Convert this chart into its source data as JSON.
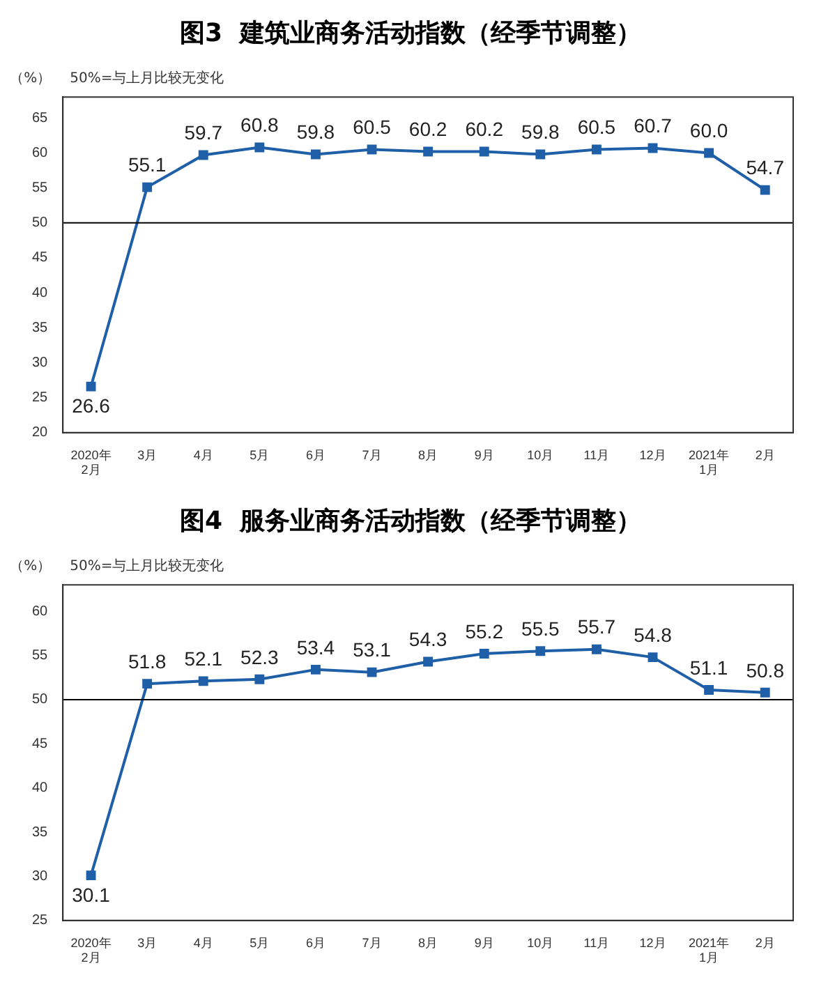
{
  "chart_data": [
    {
      "type": "line",
      "title": "图3  建筑业商务活动指数（经季节调整）",
      "ylabel": "（%）",
      "annotations": [
        "50%=与上月比较无变化"
      ],
      "categories": [
        "2020年\n2月",
        "3月",
        "4月",
        "5月",
        "6月",
        "7月",
        "8月",
        "9月",
        "10月",
        "11月",
        "12月",
        "2021年\n1月",
        "2月"
      ],
      "series": [
        {
          "color": "#1f5fa8",
          "values": [
            26.6,
            55.1,
            59.7,
            60.8,
            59.8,
            60.5,
            60.2,
            60.2,
            59.8,
            60.5,
            60.7,
            60.0,
            54.7
          ],
          "value_labels": [
            "26.6",
            "55.1",
            "59.7",
            "60.8",
            "59.8",
            "60.5",
            "60.2",
            "60.2",
            "59.8",
            "60.5",
            "60.7",
            "60.0",
            "54.7"
          ]
        }
      ],
      "ylim": [
        20,
        68
      ],
      "yticks": [
        20,
        25,
        30,
        35,
        40,
        45,
        50,
        55,
        60,
        65
      ],
      "grid": false,
      "legend": false,
      "marker": "square",
      "line_style": "solid",
      "ref_lines": [
        {
          "axis": "y",
          "value": 50,
          "color": "#000000"
        }
      ]
    },
    {
      "type": "line",
      "title": "图4  服务业商务活动指数（经季节调整）",
      "ylabel": "（%）",
      "annotations": [
        "50%=与上月比较无变化"
      ],
      "categories": [
        "2020年\n2月",
        "3月",
        "4月",
        "5月",
        "6月",
        "7月",
        "8月",
        "9月",
        "10月",
        "11月",
        "12月",
        "2021年\n1月",
        "2月"
      ],
      "series": [
        {
          "color": "#1f5fa8",
          "values": [
            30.1,
            51.8,
            52.1,
            52.3,
            53.4,
            53.1,
            54.3,
            55.2,
            55.5,
            55.7,
            54.8,
            51.1,
            50.8
          ],
          "value_labels": [
            "30.1",
            "51.8",
            "52.1",
            "52.3",
            "53.4",
            "53.1",
            "54.3",
            "55.2",
            "55.5",
            "55.7",
            "54.8",
            "51.1",
            "50.8"
          ]
        }
      ],
      "ylim": [
        25,
        63
      ],
      "yticks": [
        25,
        30,
        35,
        40,
        45,
        50,
        55,
        60
      ],
      "grid": false,
      "legend": false,
      "marker": "square",
      "line_style": "solid",
      "ref_lines": [
        {
          "axis": "y",
          "value": 50,
          "color": "#000000"
        }
      ]
    }
  ]
}
